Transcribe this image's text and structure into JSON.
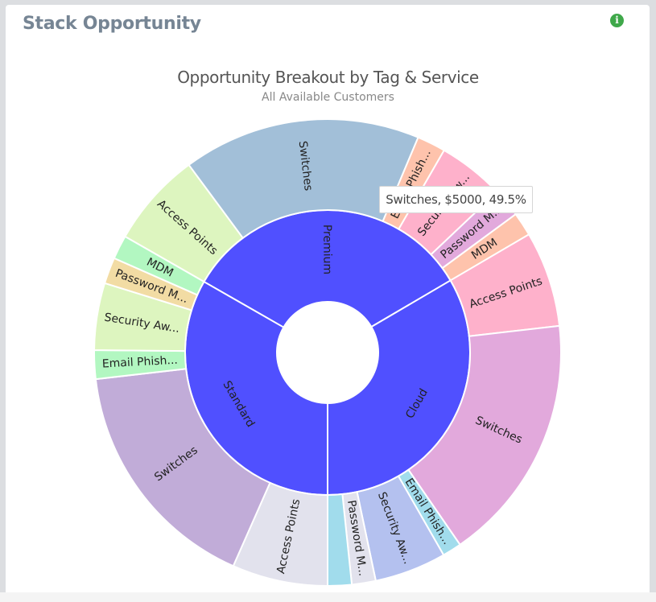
{
  "card": {
    "title": "Stack Opportunity",
    "info_icon": "info-circle-icon",
    "info_glyph": "i"
  },
  "chart_data": {
    "type": "sunburst",
    "title": "Opportunity Breakout by Tag & Service",
    "subtitle": "All Available Customers",
    "center": [
      407,
      438
    ],
    "radii": {
      "hole": 63,
      "inner": 177,
      "outer": 290
    },
    "inner_color": "#5050ff",
    "tags": [
      {
        "name": "Premium",
        "start_angle": 299.8,
        "children": [
          {
            "name": "Access Points",
            "label": "Access Points",
            "value": 2000,
            "color": "#ddf5bf"
          },
          {
            "name": "Switches",
            "label": "Switches",
            "value": 5000,
            "color": "#a2bfd8"
          },
          {
            "name": "Email Phishing",
            "label": "Email Phish...",
            "value": 600,
            "color": "#fec3ac"
          },
          {
            "name": "Security Awareness",
            "label": "Security Aw...",
            "value": 1400,
            "color": "#feb1cb"
          },
          {
            "name": "Password Manager",
            "label": "Password M...",
            "value": 600,
            "color": "#e2a9dc"
          },
          {
            "name": "MDM",
            "label": "MDM",
            "value": 500,
            "color": "#fec3ac"
          }
        ]
      },
      {
        "name": "Cloud",
        "start_angle": 59.6,
        "children": [
          {
            "name": "Access Points",
            "label": "Access Points",
            "value": 2000,
            "color": "#feb1cb"
          },
          {
            "name": "Switches",
            "label": "Switches",
            "value": 5200,
            "color": "#e2a9dc"
          },
          {
            "name": "Email Phishing",
            "label": "Email Phish...",
            "value": 400,
            "color": "#a1dcec"
          },
          {
            "name": "Security Awareness",
            "label": "Security Aw...",
            "value": 1500,
            "color": "#b4c1ef"
          },
          {
            "name": "Password Manager",
            "label": "Password M...",
            "value": 500,
            "color": "#e2e2ed"
          },
          {
            "name": "",
            "label": "",
            "value": 500,
            "color": "#a1dcec"
          }
        ]
      },
      {
        "name": "Standard",
        "start_angle": 180,
        "children": [
          {
            "name": "Access Points",
            "label": "Access Points",
            "value": 2000,
            "color": "#e2e2ed"
          },
          {
            "name": "Switches",
            "label": "Switches",
            "value": 5000,
            "color": "#c1acd8"
          },
          {
            "name": "Email Phishing",
            "label": "Email Phish...",
            "value": 600,
            "color": "#b2f7c1"
          },
          {
            "name": "Security Awareness",
            "label": "Security Aw...",
            "value": 1400,
            "color": "#ddf5bf"
          },
          {
            "name": "Password Manager",
            "label": "Password M...",
            "value": 550,
            "color": "#f2dca4"
          },
          {
            "name": "MDM",
            "label": "MDM",
            "value": 500,
            "color": "#b2f7c1"
          }
        ]
      }
    ],
    "hover": {
      "label": "Switches",
      "value": "$5000",
      "percent": "49.5%",
      "text": "Switches, $5000, 49.5%"
    }
  }
}
